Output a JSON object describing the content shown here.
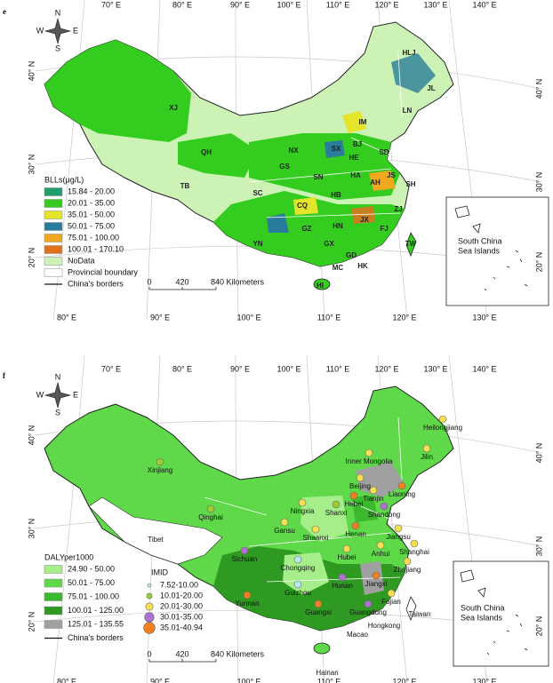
{
  "panels": [
    {
      "label": "e",
      "lon_top": [
        "70° E",
        "80° E",
        "90° E",
        "100° E",
        "110° E",
        "120° E",
        "130° E",
        "140° E"
      ],
      "lon_bottom": [
        "80° E",
        "90° E",
        "100° E",
        "110° E",
        "120° E",
        "130° E"
      ],
      "lat_left": [
        "40° N",
        "30° N",
        "20° N"
      ],
      "lat_right": [
        "40° N",
        "30° N",
        "20° N"
      ],
      "compass": {
        "n": "N",
        "s": "S",
        "w": "W",
        "e": "E"
      },
      "regions": [
        "HLJ",
        "JL",
        "IM",
        "LN",
        "BJ",
        "XJ",
        "QH",
        "TB",
        "NX",
        "GS",
        "SX",
        "HE",
        "SD",
        "SN",
        "HA",
        "HB",
        "JS",
        "AH",
        "SH",
        "SC",
        "CQ",
        "ZJ",
        "GZ",
        "HN",
        "JX",
        "YN",
        "GX",
        "FJ",
        "GD",
        "TW",
        "HK",
        "MC",
        "HI"
      ],
      "legend": {
        "title": "BLLs(μg/L)",
        "items": [
          {
            "label": "15.84 - 20.00",
            "color": "#1f9e6a"
          },
          {
            "label": "20.01 - 35.00",
            "color": "#33cc1f"
          },
          {
            "label": "35.01 - 50.00",
            "color": "#e4e42a"
          },
          {
            "label": "50.01 - 75.00",
            "color": "#2a7d9a"
          },
          {
            "label": "75.01 - 100.00",
            "color": "#f0a81e"
          },
          {
            "label": "100.01 - 170.10",
            "color": "#e0701e"
          },
          {
            "label": "NoData",
            "color": "#cdf2b6"
          },
          {
            "label": "Provincial boundary",
            "color": "#ffffff"
          }
        ],
        "border": "China's borders"
      },
      "scale": [
        "0",
        "420",
        "840 Kilometers"
      ],
      "inset": [
        "South China",
        "Sea Islands"
      ]
    },
    {
      "label": "f",
      "lon_top": [
        "70° E",
        "80° E",
        "90° E",
        "100° E",
        "110° E",
        "120° E",
        "130° E",
        "140° E"
      ],
      "lon_bottom": [
        "80° E",
        "90° E",
        "100° E",
        "110° E",
        "120° E",
        "130° E"
      ],
      "lat_left": [
        "40° N",
        "30° N",
        "20° N"
      ],
      "lat_right": [
        "40° N",
        "30° N",
        "20° N"
      ],
      "compass": {
        "n": "N",
        "s": "S",
        "w": "W",
        "e": "E"
      },
      "regions": [
        "Heilongjiang",
        "Jilin",
        "Inner Mongolia",
        "Liaoning",
        "Xinjiang",
        "Beijing",
        "Tianjin",
        "Hebei",
        "Qinghai",
        "Ningxia",
        "Shanxi",
        "Shandong",
        "Gansu",
        "Tibet",
        "Henan",
        "Jiangsu",
        "Shaanxi",
        "Anhui",
        "Shanghai",
        "Hubei",
        "Sichuan",
        "Chongqing",
        "Zhejiang",
        "Jiangxi",
        "Hunan",
        "Guizhou",
        "Fujian",
        "Taiwan",
        "Yunnan",
        "Guangxi",
        "Guangdong",
        "Hongkong",
        "Macao",
        "Hainan"
      ],
      "legend": {
        "title": "DALYper1000",
        "items": [
          {
            "label": "24.90 - 50.00",
            "color": "#a6ee8a"
          },
          {
            "label": "50.01 - 75.00",
            "color": "#5fd84a"
          },
          {
            "label": "75.01 - 100.00",
            "color": "#3cb82c"
          },
          {
            "label": "100.01 - 125.00",
            "color": "#2e9a22"
          },
          {
            "label": "125.01 - 135.55",
            "color": "#a0a0a0"
          }
        ],
        "border": "China's borders"
      },
      "imid": {
        "title": "IMID",
        "items": [
          {
            "label": "7.52-10.00",
            "color": "#b8e8f0"
          },
          {
            "label": "10.01-20.00",
            "color": "#9acd32"
          },
          {
            "label": "20.01-30.00",
            "color": "#f5e050"
          },
          {
            "label": "30.01-35.00",
            "color": "#b070d0"
          },
          {
            "label": "35.01-40.94",
            "color": "#f08020"
          }
        ]
      },
      "scale": [
        "0",
        "420",
        "840 Kilometers"
      ],
      "inset": [
        "South China",
        "Sea Islands"
      ]
    }
  ]
}
